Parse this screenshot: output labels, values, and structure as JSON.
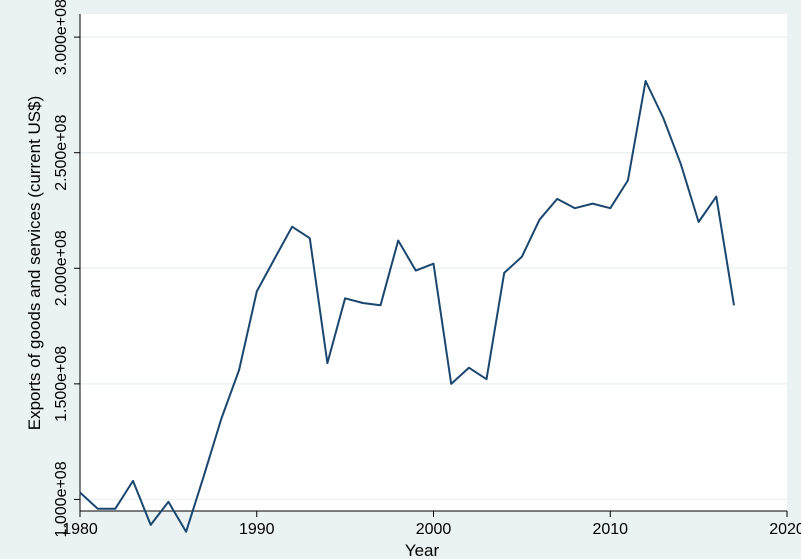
{
  "chart_data": {
    "type": "line",
    "title": "",
    "xlabel": "Year",
    "ylabel": "Exports of goods and services (current US$)",
    "xlim": [
      1980,
      2020
    ],
    "ylim": [
      95000000,
      310000000
    ],
    "x_ticks": [
      1980,
      1990,
      2000,
      2010,
      2020
    ],
    "x_tick_labels": [
      "1980",
      "1990",
      "2000",
      "2010",
      "2020"
    ],
    "y_ticks": [
      100000000,
      150000000,
      200000000,
      250000000,
      300000000
    ],
    "y_tick_labels": [
      "1.000e+08",
      "1.500e+08",
      "2.000e+08",
      "2.500e+08",
      "3.000e+08"
    ],
    "grid": true,
    "series": [
      {
        "x": [
          1980,
          1981,
          1982,
          1983,
          1984,
          1985,
          1986,
          1987,
          1988,
          1989,
          1990,
          1991,
          1992,
          1993,
          1994,
          1995,
          1996,
          1997,
          1998,
          1999,
          2000,
          2001,
          2002,
          2003,
          2004,
          2005,
          2006,
          2007,
          2008,
          2009,
          2010,
          2011,
          2012,
          2013,
          2014,
          2015,
          2016,
          2017
        ],
        "values": [
          103000000,
          96000000,
          96000000,
          108000000,
          89000000,
          99000000,
          86000000,
          110000000,
          135000000,
          156000000,
          190000000,
          204000000,
          218000000,
          213000000,
          159000000,
          187000000,
          185000000,
          184000000,
          212000000,
          199000000,
          202000000,
          150000000,
          157000000,
          152000000,
          198000000,
          205000000,
          221000000,
          230000000,
          226000000,
          228000000,
          226000000,
          238000000,
          281000000,
          265000000,
          245000000,
          220000000,
          231000000,
          184000000
        ]
      }
    ],
    "colors": {
      "line": "#1a476f",
      "plot_bg": "#ffffff",
      "outer_bg": "#eaf2f3",
      "grid": "#eaf2f3"
    }
  }
}
